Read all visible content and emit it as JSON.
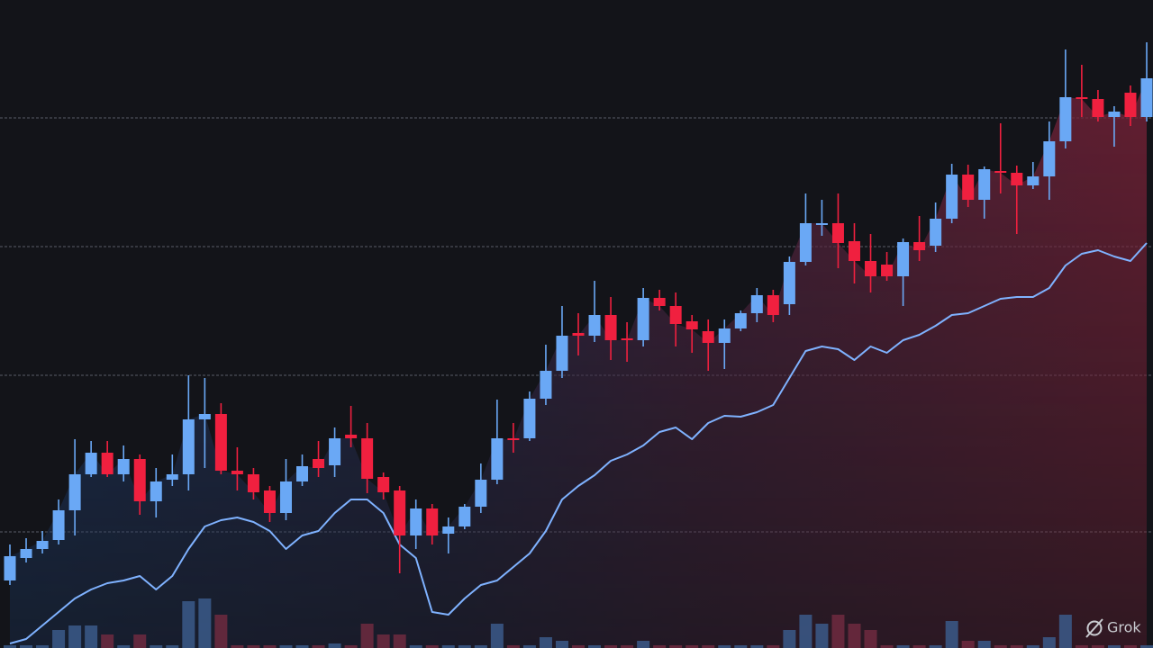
{
  "chart_data": {
    "type": "candlestick",
    "ylim": [
      0,
      720
    ],
    "gridlines": [
      589,
      446,
      303,
      129
    ],
    "up_color": "#6aa8f5",
    "down_color": "#f0203f",
    "line_color": "#7fb2ff",
    "open": [
      75,
      100,
      110,
      120,
      153,
      193,
      217,
      193,
      210,
      163,
      187,
      193,
      254,
      260,
      197,
      193,
      175,
      150,
      185,
      210,
      203,
      237,
      233,
      190,
      175,
      125,
      155,
      127,
      135,
      157,
      187,
      233,
      233,
      277,
      308,
      350,
      347,
      370,
      344,
      342,
      389,
      380,
      363,
      352,
      339,
      355,
      372,
      392,
      382,
      429,
      470,
      472,
      452,
      430,
      426,
      413,
      451,
      447,
      477,
      526,
      498,
      530,
      528,
      514,
      524,
      563,
      612,
      610,
      590,
      617,
      590
    ],
    "high": [
      115,
      122,
      130,
      165,
      232,
      230,
      230,
      225,
      215,
      200,
      215,
      303,
      300,
      272,
      223,
      200,
      180,
      210,
      215,
      230,
      245,
      269,
      250,
      195,
      180,
      165,
      160,
      145,
      160,
      205,
      276,
      250,
      285,
      337,
      380,
      372,
      408,
      390,
      362,
      400,
      398,
      395,
      370,
      365,
      365,
      375,
      400,
      398,
      435,
      505,
      498,
      505,
      472,
      460,
      440,
      455,
      480,
      495,
      538,
      537,
      535,
      583,
      536,
      540,
      585,
      665,
      648,
      620,
      602,
      625,
      673
    ],
    "low": [
      70,
      95,
      105,
      115,
      125,
      190,
      190,
      185,
      148,
      145,
      180,
      175,
      200,
      193,
      175,
      165,
      140,
      142,
      180,
      190,
      190,
      223,
      172,
      165,
      83,
      110,
      115,
      105,
      132,
      150,
      182,
      217,
      230,
      270,
      300,
      325,
      340,
      320,
      318,
      335,
      375,
      335,
      328,
      308,
      310,
      352,
      362,
      362,
      370,
      425,
      458,
      422,
      405,
      395,
      408,
      380,
      430,
      440,
      472,
      490,
      477,
      505,
      460,
      510,
      498,
      555,
      590,
      585,
      557,
      580,
      585
    ],
    "close": [
      102,
      110,
      119,
      153,
      193,
      217,
      193,
      210,
      163,
      185,
      193,
      254,
      260,
      197,
      193,
      173,
      150,
      185,
      202,
      200,
      233,
      233,
      188,
      173,
      125,
      155,
      125,
      135,
      157,
      187,
      233,
      231,
      277,
      308,
      347,
      347,
      370,
      342,
      342,
      389,
      380,
      360,
      354,
      339,
      355,
      372,
      392,
      370,
      429,
      472,
      472,
      450,
      430,
      413,
      413,
      451,
      442,
      477,
      526,
      498,
      532,
      528,
      514,
      524,
      563,
      612,
      610,
      590,
      596,
      590,
      633
    ],
    "line": [
      5,
      10,
      25,
      40,
      55,
      65,
      72,
      75,
      80,
      65,
      80,
      110,
      135,
      142,
      145,
      140,
      130,
      110,
      125,
      130,
      150,
      165,
      165,
      150,
      115,
      100,
      40,
      37,
      55,
      70,
      75,
      90,
      105,
      130,
      165,
      180,
      192,
      208,
      215,
      225,
      240,
      245,
      232,
      250,
      258,
      257,
      262,
      270,
      300,
      330,
      335,
      332,
      320,
      335,
      328,
      342,
      348,
      358,
      370,
      372,
      380,
      388,
      390,
      390,
      400,
      425,
      438,
      442,
      435,
      430,
      450
    ],
    "volume": [
      3,
      3,
      3,
      20,
      25,
      25,
      15,
      3,
      15,
      3,
      3,
      52,
      55,
      37,
      3,
      3,
      3,
      3,
      3,
      3,
      5,
      3,
      27,
      15,
      15,
      3,
      3,
      3,
      3,
      3,
      27,
      3,
      3,
      12,
      8,
      3,
      3,
      3,
      3,
      8,
      3,
      3,
      3,
      3,
      3,
      3,
      3,
      3,
      20,
      37,
      27,
      37,
      27,
      20,
      3,
      3,
      3,
      3,
      30,
      8,
      8,
      3,
      3,
      3,
      12,
      37,
      3,
      3,
      3,
      3,
      3
    ]
  },
  "watermark": "Grok"
}
